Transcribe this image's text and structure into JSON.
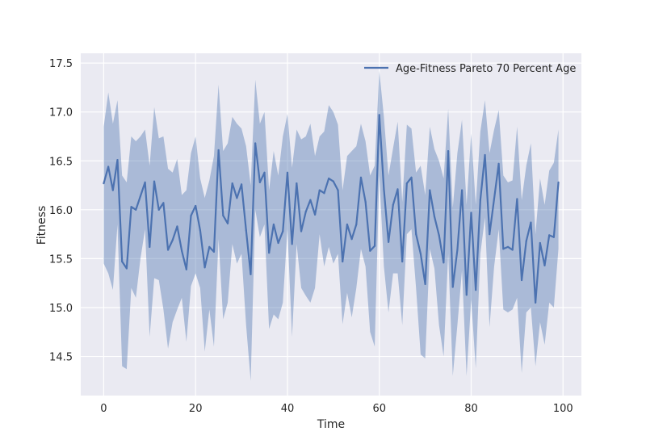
{
  "chart_data": {
    "type": "line",
    "xlabel": "Time",
    "ylabel": "Fitness",
    "xlim": [
      -5,
      104
    ],
    "ylim": [
      14.1,
      17.6
    ],
    "xticks": [
      0,
      20,
      40,
      60,
      80,
      100
    ],
    "yticks": [
      14.5,
      15.0,
      15.5,
      16.0,
      16.5,
      17.0,
      17.5
    ],
    "ytick_labels": [
      "14.5",
      "15.0",
      "15.5",
      "16.0",
      "16.5",
      "17.0",
      "17.5"
    ],
    "grid": true,
    "legend_position": "top-right",
    "colors": {
      "background": "#eaeaf2",
      "grid": "#ffffff",
      "line": "#4c72b0",
      "band": "#4c72b0"
    },
    "series": [
      {
        "name": "Age-Fitness Pareto 70 Percent Age",
        "x": [
          0,
          1,
          2,
          3,
          4,
          5,
          6,
          7,
          8,
          9,
          10,
          11,
          12,
          13,
          14,
          15,
          16,
          17,
          18,
          19,
          20,
          21,
          22,
          23,
          24,
          25,
          26,
          27,
          28,
          29,
          30,
          31,
          32,
          33,
          34,
          35,
          36,
          37,
          38,
          39,
          40,
          41,
          42,
          43,
          44,
          45,
          46,
          47,
          48,
          49,
          50,
          51,
          52,
          53,
          54,
          55,
          56,
          57,
          58,
          59,
          60,
          61,
          62,
          63,
          64,
          65,
          66,
          67,
          68,
          69,
          70,
          71,
          72,
          73,
          74,
          75,
          76,
          77,
          78,
          79,
          80,
          81,
          82,
          83,
          84,
          85,
          86,
          87,
          88,
          89,
          90,
          91,
          92,
          93,
          94,
          95,
          96,
          97,
          98,
          99
        ],
        "y": [
          16.27,
          16.44,
          16.2,
          16.51,
          15.47,
          15.4,
          16.03,
          16.0,
          16.14,
          16.28,
          15.62,
          16.29,
          16.0,
          16.07,
          15.59,
          15.69,
          15.83,
          15.58,
          15.39,
          15.94,
          16.04,
          15.79,
          15.41,
          15.62,
          15.57,
          16.61,
          15.94,
          15.86,
          16.27,
          16.12,
          16.26,
          15.79,
          15.34,
          16.68,
          16.28,
          16.38,
          15.56,
          15.85,
          15.66,
          15.78,
          16.38,
          15.65,
          16.27,
          15.78,
          15.98,
          16.1,
          15.95,
          16.2,
          16.17,
          16.32,
          16.29,
          16.2,
          15.47,
          15.85,
          15.7,
          15.85,
          16.33,
          16.08,
          15.58,
          15.63,
          16.97,
          16.21,
          15.67,
          16.05,
          16.21,
          15.47,
          16.27,
          16.33,
          15.75,
          15.55,
          15.24,
          16.2,
          15.93,
          15.74,
          15.46,
          16.6,
          15.21,
          15.59,
          16.2,
          15.13,
          15.97,
          15.18,
          16.1,
          16.56,
          15.75,
          16.11,
          16.47,
          15.6,
          15.62,
          15.59,
          16.11,
          15.28,
          15.68,
          15.87,
          15.05,
          15.66,
          15.43,
          15.74,
          15.72,
          16.28
        ],
        "lower": [
          15.45,
          15.35,
          15.18,
          15.85,
          14.4,
          14.37,
          15.2,
          15.1,
          15.5,
          15.8,
          14.7,
          15.3,
          15.28,
          14.98,
          14.58,
          14.85,
          14.98,
          15.1,
          14.65,
          15.22,
          15.35,
          15.2,
          14.55,
          14.98,
          14.6,
          15.7,
          14.88,
          15.05,
          15.65,
          15.45,
          15.55,
          14.82,
          14.25,
          16.0,
          15.72,
          15.85,
          14.78,
          14.93,
          14.88,
          15.05,
          15.8,
          14.7,
          15.65,
          15.2,
          15.12,
          15.05,
          15.2,
          15.75,
          15.42,
          15.62,
          15.45,
          15.55,
          14.83,
          15.15,
          14.9,
          15.2,
          15.6,
          15.42,
          14.75,
          14.6,
          16.35,
          15.42,
          14.95,
          15.35,
          15.35,
          14.82,
          15.75,
          15.8,
          15.2,
          14.52,
          14.48,
          15.6,
          15.4,
          14.82,
          14.5,
          15.55,
          14.3,
          14.82,
          15.38,
          14.3,
          15.08,
          14.38,
          15.55,
          15.92,
          14.8,
          15.42,
          15.8,
          14.98,
          14.95,
          14.98,
          15.1,
          14.33,
          14.95,
          15.0,
          14.4,
          14.85,
          14.62,
          15.05,
          15.0,
          15.6
        ],
        "upper": [
          16.85,
          17.2,
          16.88,
          17.12,
          16.35,
          16.28,
          16.75,
          16.7,
          16.75,
          16.82,
          16.45,
          17.05,
          16.73,
          16.75,
          16.42,
          16.38,
          16.52,
          16.15,
          16.2,
          16.58,
          16.75,
          16.32,
          16.12,
          16.3,
          16.55,
          17.28,
          16.6,
          16.68,
          16.95,
          16.88,
          16.83,
          16.65,
          16.25,
          17.33,
          16.88,
          17.0,
          16.2,
          16.6,
          16.35,
          16.75,
          16.98,
          16.43,
          16.82,
          16.72,
          16.75,
          16.88,
          16.55,
          16.75,
          16.8,
          17.07,
          17.0,
          16.87,
          16.2,
          16.55,
          16.6,
          16.65,
          16.88,
          16.7,
          16.35,
          16.45,
          17.42,
          16.95,
          16.35,
          16.63,
          16.9,
          16.08,
          16.87,
          16.83,
          16.38,
          16.45,
          16.15,
          16.85,
          16.62,
          16.5,
          16.32,
          17.03,
          16.02,
          16.58,
          16.92,
          16.05,
          16.78,
          16.05,
          16.8,
          17.12,
          16.58,
          16.82,
          17.02,
          16.35,
          16.28,
          16.3,
          16.85,
          16.1,
          16.45,
          16.68,
          15.75,
          16.32,
          16.05,
          16.4,
          16.48,
          16.82
        ]
      }
    ]
  }
}
